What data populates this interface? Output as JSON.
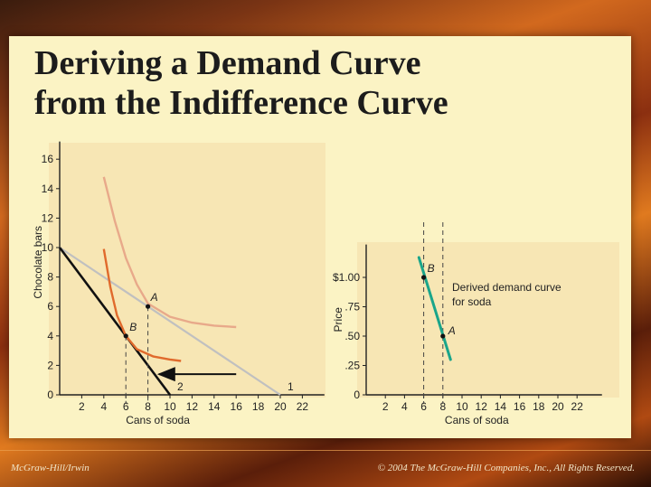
{
  "title": {
    "line1": "Deriving a Demand Curve",
    "line2": "from the Indifference Curve"
  },
  "footer": {
    "left": "McGraw-Hill/Irwin",
    "right": "© 2004 The McGraw-Hill Companies, Inc., All Rights Reserved."
  },
  "colors": {
    "budget_line_1": "#c0c0c0",
    "budget_line_2": "#111111",
    "indiff_high": "#e8a98a",
    "indiff_low": "#e06a2c",
    "demand_curve": "#1aa58a",
    "panel_fill": "#f7e6b4"
  },
  "chart_data": [
    {
      "type": "line",
      "title": "",
      "xlabel": "Cans of soda",
      "ylabel": "Chocolate bars",
      "xlim": [
        0,
        24
      ],
      "ylim": [
        0,
        17
      ],
      "xticks": [
        2,
        4,
        6,
        8,
        10,
        12,
        14,
        16,
        18,
        20,
        22
      ],
      "yticks": [
        0,
        2,
        4,
        6,
        8,
        10,
        12,
        14,
        16
      ],
      "series": [
        {
          "name": "1",
          "kind": "budget",
          "points": [
            [
              0,
              10
            ],
            [
              20,
              0
            ]
          ]
        },
        {
          "name": "2",
          "kind": "budget",
          "points": [
            [
              0,
              10
            ],
            [
              10,
              0
            ]
          ]
        },
        {
          "name": "",
          "kind": "indiff-high",
          "points": [
            [
              4,
              14.8
            ],
            [
              5,
              11.8
            ],
            [
              6,
              9.3
            ],
            [
              7,
              7.5
            ],
            [
              8,
              6.2
            ],
            [
              10,
              5.3
            ],
            [
              12,
              4.9
            ],
            [
              14,
              4.7
            ],
            [
              16,
              4.6
            ]
          ]
        },
        {
          "name": "",
          "kind": "indiff-low",
          "points": [
            [
              4,
              9.9
            ],
            [
              4.6,
              7.3
            ],
            [
              5.2,
              5.4
            ],
            [
              6,
              4
            ],
            [
              7,
              3.1
            ],
            [
              8.5,
              2.6
            ],
            [
              10,
              2.4
            ],
            [
              11,
              2.3
            ]
          ]
        }
      ],
      "points": [
        {
          "label": "A",
          "x": 8,
          "y": 6
        },
        {
          "label": "B",
          "x": 6,
          "y": 4
        }
      ],
      "arrow": {
        "from": [
          16,
          1.4
        ],
        "to": [
          9,
          1.4
        ]
      }
    },
    {
      "type": "line",
      "title": "",
      "xlabel": "Cans of soda",
      "ylabel": "Price",
      "xlim": [
        0,
        24
      ],
      "ylim": [
        0,
        1.25
      ],
      "xticks": [
        2,
        4,
        6,
        8,
        10,
        12,
        14,
        16,
        18,
        20,
        22
      ],
      "yticks": [
        0,
        0.25,
        0.5,
        0.75,
        1.0
      ],
      "ytick_labels": [
        "0",
        ".25",
        ".50",
        ".75",
        "$1.00"
      ],
      "series": [
        {
          "name": "Derived demand curve for soda",
          "kind": "demand",
          "points": [
            [
              5.5,
              1.17
            ],
            [
              8.8,
              0.3
            ]
          ]
        }
      ],
      "annotation": {
        "line1": "Derived demand curve",
        "line2": "for soda"
      },
      "points": [
        {
          "label": "B",
          "x": 6,
          "y": 1.0
        },
        {
          "label": "A",
          "x": 8,
          "y": 0.5
        }
      ]
    }
  ]
}
